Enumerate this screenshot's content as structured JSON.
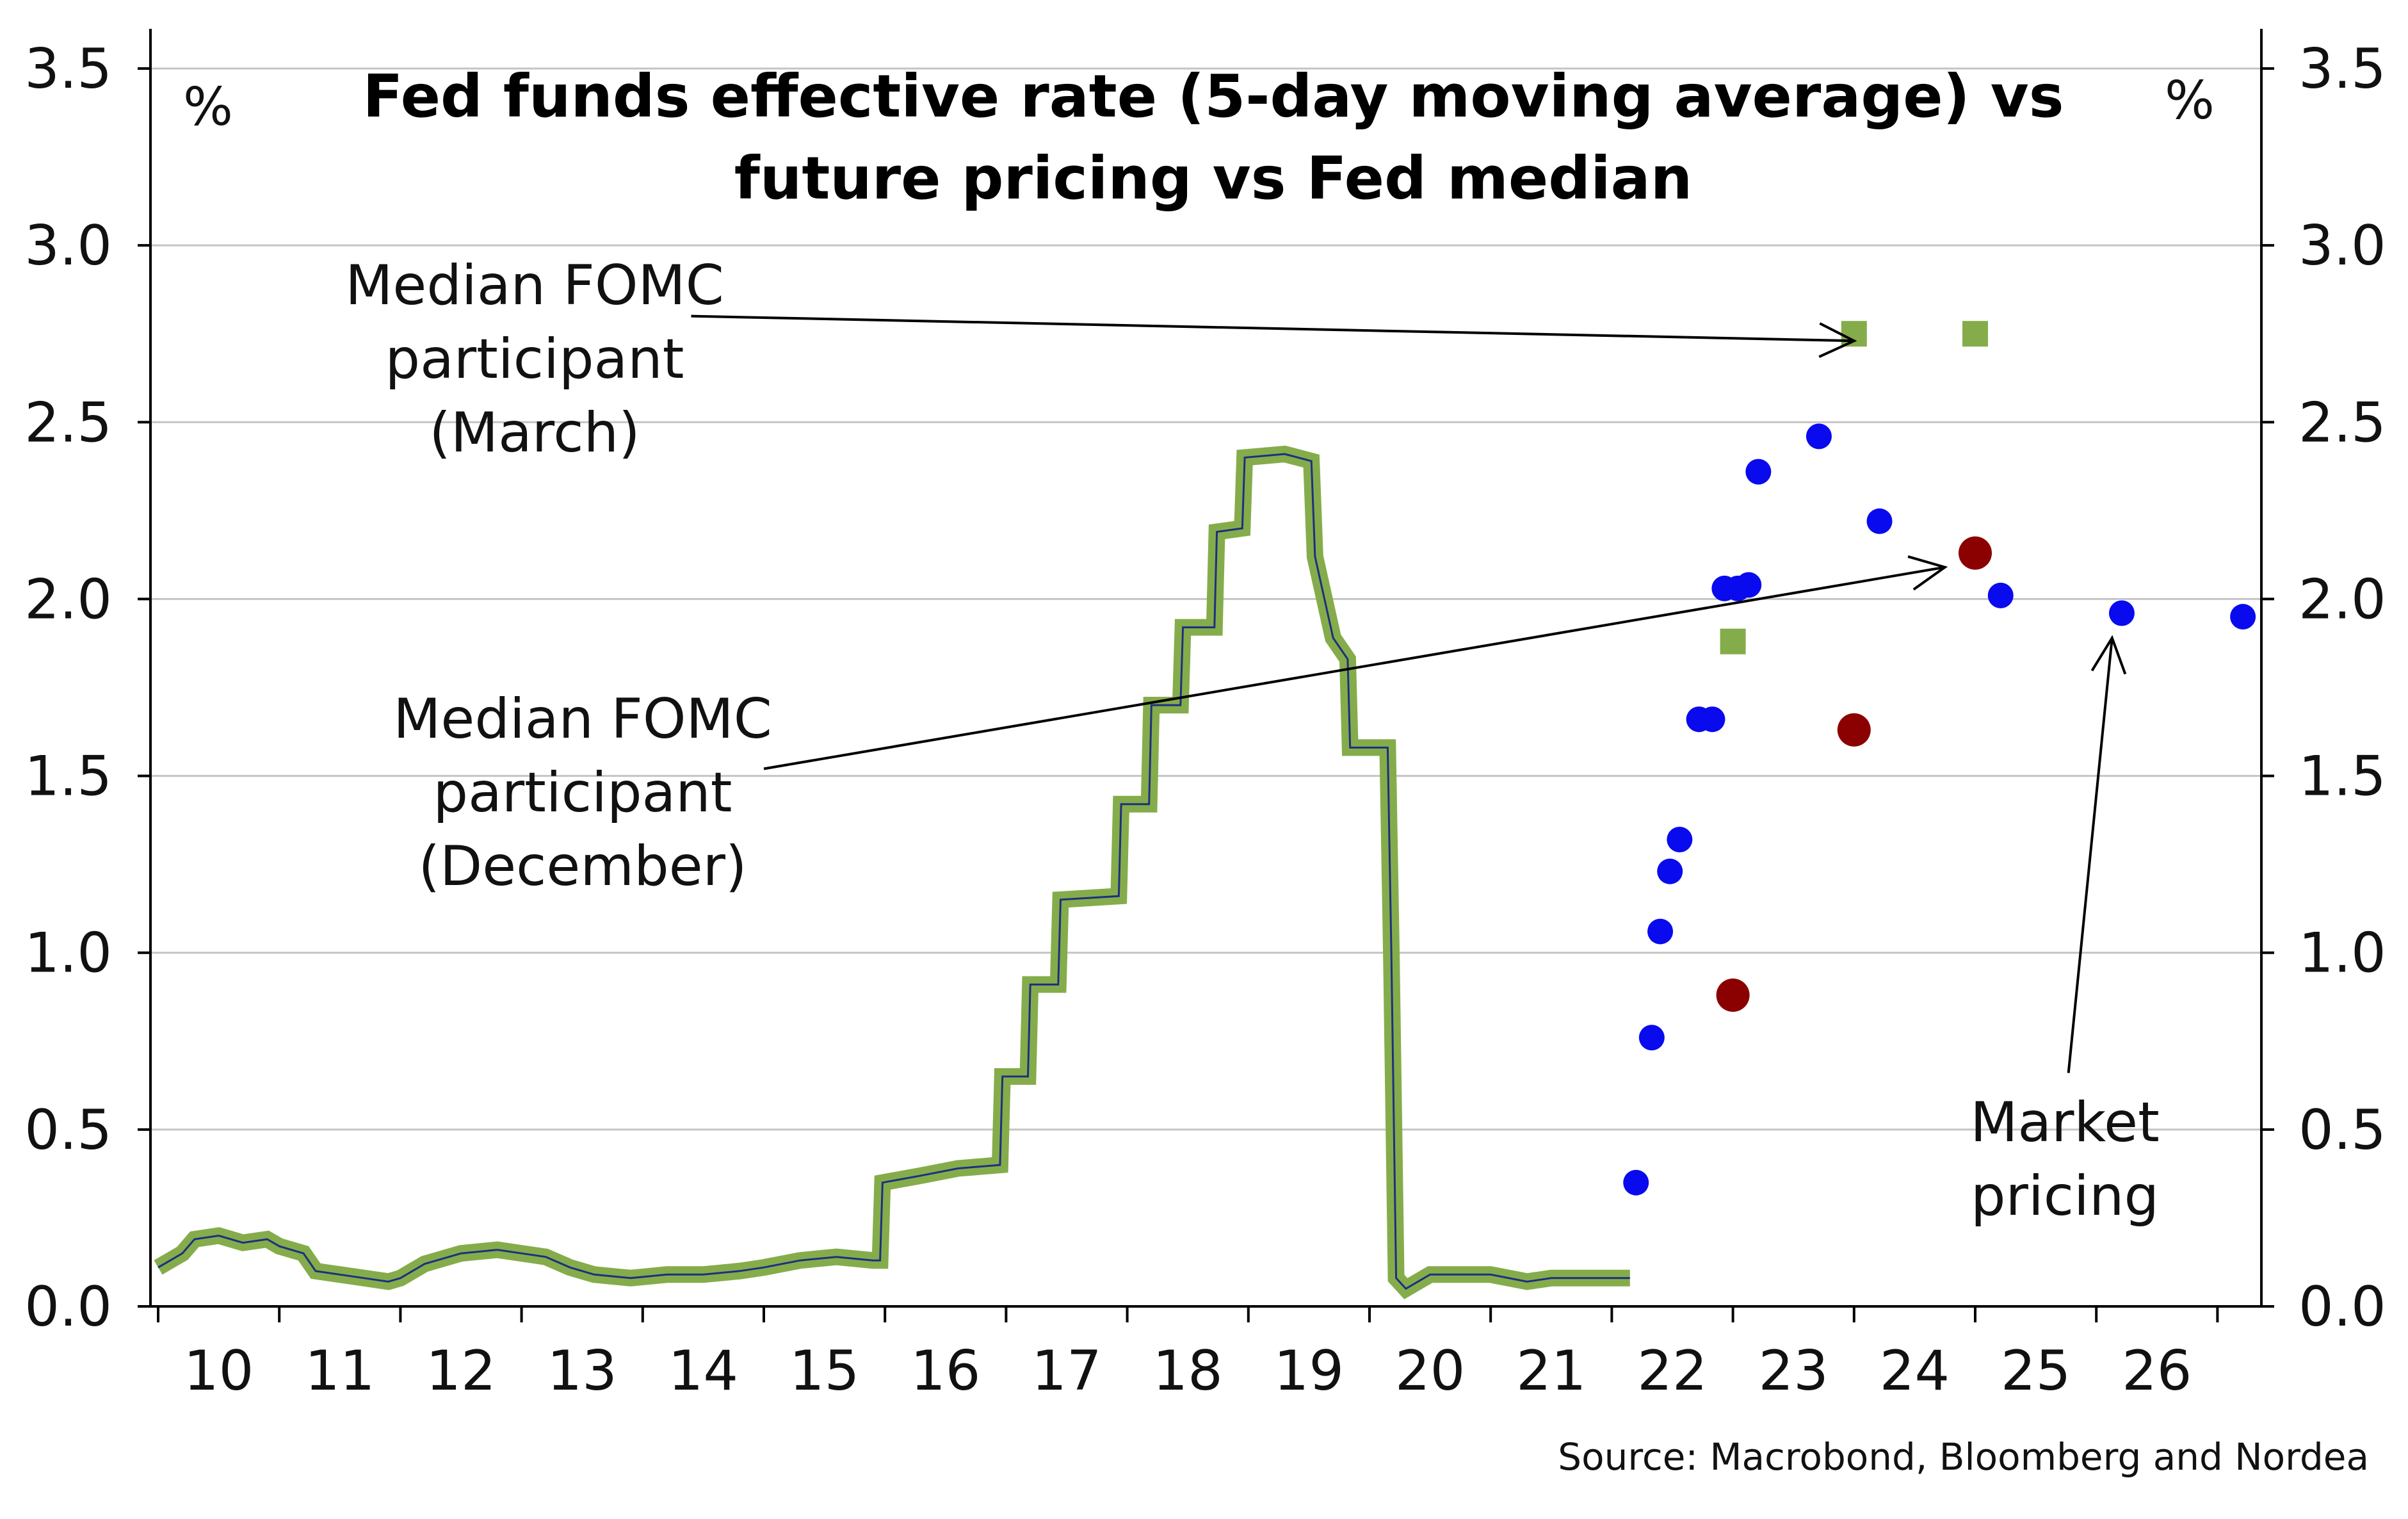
{
  "chart_data": {
    "type": "line",
    "title_lines": [
      "Fed funds effective rate (5-day moving average) vs",
      "future pricing vs Fed median"
    ],
    "y_unit_left": "%",
    "y_unit_right": "%",
    "x_ticks": [
      "10",
      "11",
      "12",
      "13",
      "14",
      "15",
      "16",
      "17",
      "18",
      "19",
      "20",
      "21",
      "22",
      "23",
      "24",
      "25",
      "26"
    ],
    "y_ticks": [
      "0.0",
      "0.5",
      "1.0",
      "1.5",
      "2.0",
      "2.5",
      "3.0",
      "3.5"
    ],
    "xlim": [
      2010,
      2027.1
    ],
    "ylim": [
      0,
      3.5
    ],
    "grid": true,
    "colors": {
      "fed_funds": "#85ac4b",
      "fed_funds_core": "#1e2f80",
      "market_pricing": "#0a0aee",
      "median_december": "#8b0000",
      "median_march": "#85ac4b",
      "gray_point": "#c8c8c8"
    },
    "series": [
      {
        "key": "fed_funds",
        "points": [
          [
            2010.0,
            0.11
          ],
          [
            2010.1,
            0.13
          ],
          [
            2010.2,
            0.15
          ],
          [
            2010.3,
            0.19
          ],
          [
            2010.5,
            0.2
          ],
          [
            2010.7,
            0.18
          ],
          [
            2010.9,
            0.19
          ],
          [
            2011.0,
            0.17
          ],
          [
            2011.2,
            0.15
          ],
          [
            2011.3,
            0.1
          ],
          [
            2011.5,
            0.09
          ],
          [
            2011.7,
            0.08
          ],
          [
            2011.9,
            0.07
          ],
          [
            2012.0,
            0.08
          ],
          [
            2012.2,
            0.12
          ],
          [
            2012.5,
            0.15
          ],
          [
            2012.8,
            0.16
          ],
          [
            2013.0,
            0.15
          ],
          [
            2013.2,
            0.14
          ],
          [
            2013.4,
            0.11
          ],
          [
            2013.6,
            0.09
          ],
          [
            2013.9,
            0.08
          ],
          [
            2014.2,
            0.09
          ],
          [
            2014.5,
            0.09
          ],
          [
            2014.8,
            0.1
          ],
          [
            2015.0,
            0.11
          ],
          [
            2015.3,
            0.13
          ],
          [
            2015.6,
            0.14
          ],
          [
            2015.9,
            0.13
          ],
          [
            2015.96,
            0.13
          ],
          [
            2015.98,
            0.35
          ],
          [
            2016.3,
            0.37
          ],
          [
            2016.6,
            0.39
          ],
          [
            2016.95,
            0.4
          ],
          [
            2016.97,
            0.65
          ],
          [
            2017.18,
            0.65
          ],
          [
            2017.2,
            0.91
          ],
          [
            2017.43,
            0.91
          ],
          [
            2017.45,
            1.15
          ],
          [
            2017.93,
            1.16
          ],
          [
            2017.95,
            1.42
          ],
          [
            2018.18,
            1.42
          ],
          [
            2018.2,
            1.7
          ],
          [
            2018.44,
            1.7
          ],
          [
            2018.46,
            1.92
          ],
          [
            2018.72,
            1.92
          ],
          [
            2018.74,
            2.19
          ],
          [
            2018.95,
            2.2
          ],
          [
            2018.97,
            2.4
          ],
          [
            2019.3,
            2.41
          ],
          [
            2019.52,
            2.39
          ],
          [
            2019.55,
            2.12
          ],
          [
            2019.7,
            1.89
          ],
          [
            2019.82,
            1.83
          ],
          [
            2019.84,
            1.58
          ],
          [
            2020.15,
            1.58
          ],
          [
            2020.18,
            1.0
          ],
          [
            2020.22,
            0.08
          ],
          [
            2020.3,
            0.05
          ],
          [
            2020.5,
            0.09
          ],
          [
            2020.8,
            0.09
          ],
          [
            2021.0,
            0.09
          ],
          [
            2021.3,
            0.07
          ],
          [
            2021.5,
            0.08
          ],
          [
            2021.8,
            0.08
          ],
          [
            2022.15,
            0.08
          ]
        ]
      },
      {
        "key": "market_pricing",
        "points": [
          [
            2022.2,
            0.35
          ],
          [
            2022.33,
            0.76
          ],
          [
            2022.4,
            1.06
          ],
          [
            2022.48,
            1.23
          ],
          [
            2022.56,
            1.32
          ],
          [
            2022.72,
            1.66
          ],
          [
            2022.83,
            1.66
          ],
          [
            2022.93,
            2.03
          ],
          [
            2023.04,
            2.03
          ],
          [
            2023.13,
            2.04
          ],
          [
            2023.21,
            2.36
          ],
          [
            2023.71,
            2.46
          ],
          [
            2024.21,
            2.22
          ],
          [
            2025.21,
            2.01
          ],
          [
            2026.21,
            1.96
          ],
          [
            2027.21,
            1.95
          ]
        ]
      },
      {
        "key": "median_december",
        "points": [
          [
            2023.0,
            0.88
          ],
          [
            2024.0,
            1.63
          ],
          [
            2025.0,
            2.13
          ]
        ]
      },
      {
        "key": "median_march",
        "points": [
          [
            2023.0,
            1.88
          ],
          [
            2024.0,
            2.75
          ],
          [
            2025.0,
            2.75
          ]
        ]
      },
      {
        "key": "gray_point",
        "points": [
          [
            2022.72,
            1.66
          ]
        ]
      }
    ],
    "annotations": [
      {
        "key": "march",
        "lines": [
          "Median FOMC",
          "participant",
          "(March)"
        ],
        "arrow_from": [
          2014.4,
          2.8
        ],
        "arrow_to": [
          2024.0,
          2.73
        ]
      },
      {
        "key": "december",
        "lines": [
          "Median FOMC",
          "participant",
          "(December)"
        ],
        "arrow_from": [
          2015.0,
          1.52
        ],
        "arrow_to": [
          2024.75,
          2.09
        ]
      },
      {
        "key": "market",
        "lines": [
          "Market",
          "pricing"
        ],
        "arrow_from": [
          2025.77,
          0.66
        ],
        "arrow_to": [
          2026.13,
          1.89
        ]
      }
    ],
    "source": "Source: Macrobond, Bloomberg and Nordea"
  }
}
